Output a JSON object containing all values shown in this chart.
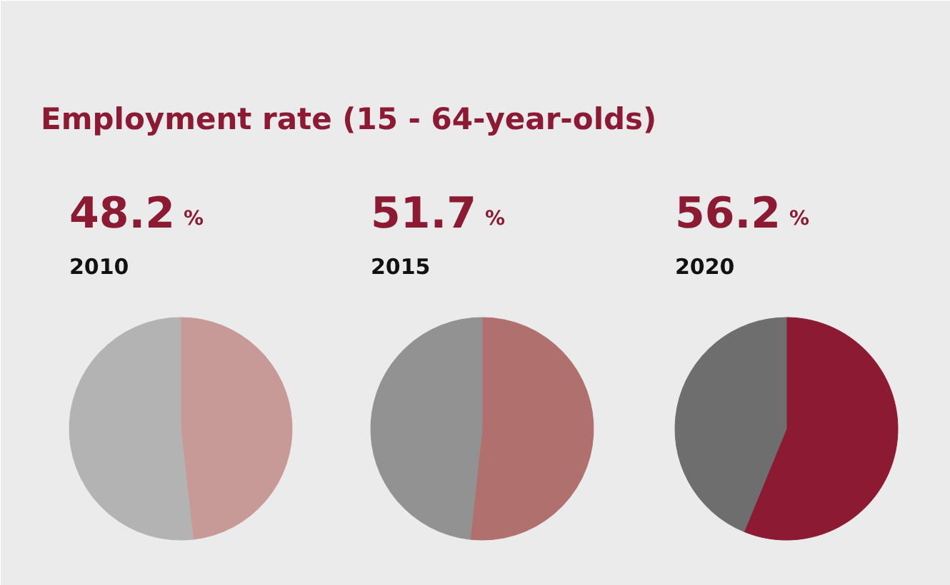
{
  "chart_data": [
    {
      "type": "pie",
      "title": "Employment rate (15 - 64-year-olds)",
      "subtitle": "2010",
      "categories": [
        null,
        null
      ],
      "values": [
        48.2,
        51.8
      ],
      "colors": [
        "#c89a97",
        "#b3b3b3"
      ],
      "value_labels": [
        "48.2 %",
        null
      ]
    },
    {
      "type": "pie",
      "subtitle": "2015",
      "categories": [
        null,
        null
      ],
      "values": [
        51.7,
        48.3
      ],
      "colors": [
        "#b0706d",
        "#929292"
      ],
      "value_labels": [
        "51.7 %",
        null
      ]
    },
    {
      "type": "pie",
      "subtitle": "2020",
      "categories": [
        null,
        null
      ],
      "values": [
        56.2,
        43.8
      ],
      "colors": [
        "#8b1a32",
        "#6e6e6e"
      ],
      "value_labels": [
        "56.2 %",
        null
      ]
    }
  ]
}
